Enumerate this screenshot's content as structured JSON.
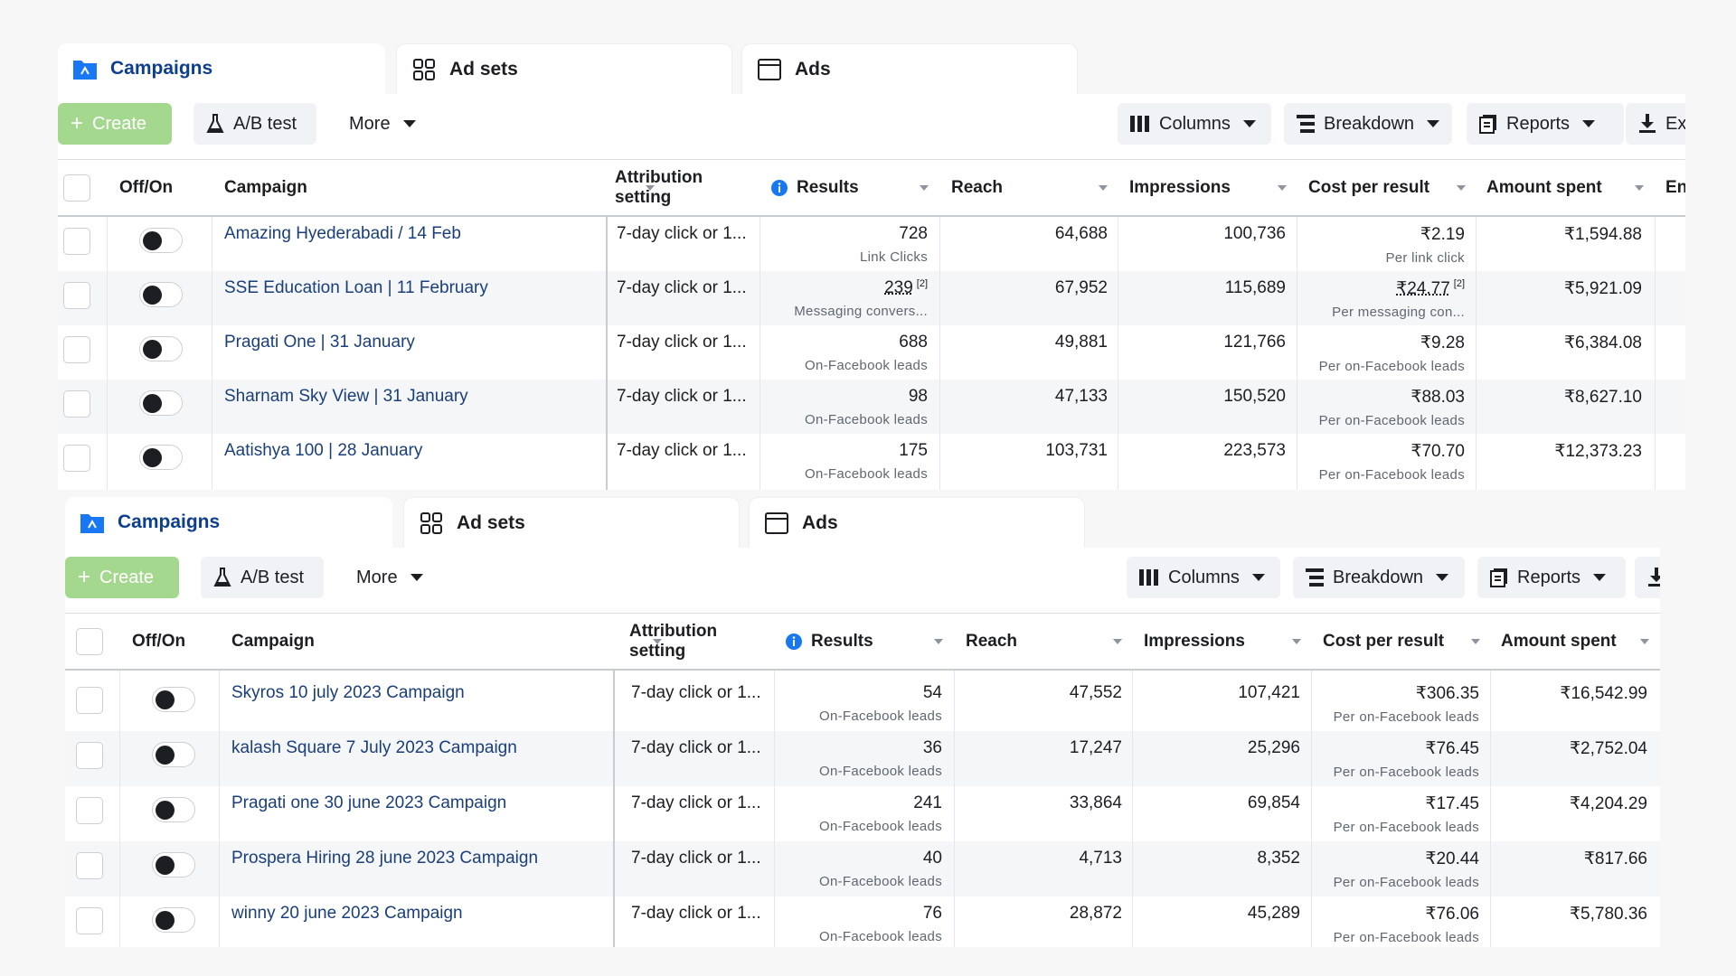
{
  "tabs": {
    "campaigns": "Campaigns",
    "adsets": "Ad sets",
    "ads": "Ads"
  },
  "toolbar": {
    "create": "Create",
    "ab_test": "A/B test",
    "more": "More",
    "columns": "Columns",
    "breakdown": "Breakdown",
    "reports": "Reports",
    "export": "Ex"
  },
  "headers": {
    "offon": "Off/On",
    "campaign": "Campaign",
    "attribution": "Attribution setting",
    "results": "Results",
    "reach": "Reach",
    "impressions": "Impressions",
    "cost": "Cost per result",
    "amount": "Amount spent",
    "ends": "En"
  },
  "top_rows": [
    {
      "name": "Amazing Hyederabadi / 14 Feb",
      "attr": "7-day click or 1...",
      "results": "728",
      "results_sub": "Link Clicks",
      "reach": "64,688",
      "impressions": "100,736",
      "cost": "₹2.19",
      "cost_sub": "Per link click",
      "amount": "₹1,594.88"
    },
    {
      "name": "SSE Education Loan | 11 February",
      "attr": "7-day click or 1...",
      "results": "239",
      "results_sup": "[2]",
      "results_sub": "Messaging convers...",
      "reach": "67,952",
      "impressions": "115,689",
      "cost": "₹24.77",
      "cost_sup": "[2]",
      "cost_sub": "Per messaging con...",
      "amount": "₹5,921.09"
    },
    {
      "name": "Pragati One | 31 January",
      "attr": "7-day click or 1...",
      "results": "688",
      "results_sub": "On-Facebook leads",
      "reach": "49,881",
      "impressions": "121,766",
      "cost": "₹9.28",
      "cost_sub": "Per on-Facebook leads",
      "amount": "₹6,384.08"
    },
    {
      "name": "Sharnam Sky View | 31 January",
      "attr": "7-day click or 1...",
      "results": "98",
      "results_sub": "On-Facebook leads",
      "reach": "47,133",
      "impressions": "150,520",
      "cost": "₹88.03",
      "cost_sub": "Per on-Facebook leads",
      "amount": "₹8,627.10"
    },
    {
      "name": "Aatishya 100 | 28 January",
      "attr": "7-day click or 1...",
      "results": "175",
      "results_sub": "On-Facebook leads",
      "reach": "103,731",
      "impressions": "223,573",
      "cost": "₹70.70",
      "cost_sub": "Per on-Facebook leads",
      "amount": "₹12,373.23"
    }
  ],
  "bottom_rows": [
    {
      "name": "Skyros 10 july 2023 Campaign",
      "attr": "7-day click or 1...",
      "results": "54",
      "results_sub": "On-Facebook leads",
      "reach": "47,552",
      "impressions": "107,421",
      "cost": "₹306.35",
      "cost_sub": "Per on-Facebook leads",
      "amount": "₹16,542.99"
    },
    {
      "name": "kalash Square 7 July 2023 Campaign",
      "attr": "7-day click or 1...",
      "results": "36",
      "results_sub": "On-Facebook leads",
      "reach": "17,247",
      "impressions": "25,296",
      "cost": "₹76.45",
      "cost_sub": "Per on-Facebook leads",
      "amount": "₹2,752.04"
    },
    {
      "name": "Pragati one 30 june 2023 Campaign",
      "attr": "7-day click or 1...",
      "results": "241",
      "results_sub": "On-Facebook leads",
      "reach": "33,864",
      "impressions": "69,854",
      "cost": "₹17.45",
      "cost_sub": "Per on-Facebook leads",
      "amount": "₹4,204.29"
    },
    {
      "name": "Prospera Hiring 28 june 2023 Campaign",
      "attr": "7-day click or 1...",
      "results": "40",
      "results_sub": "On-Facebook leads",
      "reach": "4,713",
      "impressions": "8,352",
      "cost": "₹20.44",
      "cost_sub": "Per on-Facebook leads",
      "amount": "₹817.66"
    },
    {
      "name": "winny 20 june 2023 Campaign",
      "attr": "7-day click or 1...",
      "results": "76",
      "results_sub": "On-Facebook leads",
      "reach": "28,872",
      "impressions": "45,289",
      "cost": "₹76.06",
      "cost_sub": "Per on-Facebook leads",
      "amount": "₹5,780.36"
    }
  ],
  "colors": {
    "link": "#1a3f7a",
    "create": "#a5d88f",
    "campaign_icon": "#1877f2",
    "info_icon": "#1877f2"
  },
  "icons": {
    "campaigns": "folder-icon",
    "adsets": "grid-icon",
    "ads": "window-icon",
    "ab_test": "flask-icon",
    "columns": "columns-icon",
    "breakdown": "breakdown-icon",
    "reports": "reports-icon",
    "export": "download-icon",
    "info": "info-icon"
  }
}
